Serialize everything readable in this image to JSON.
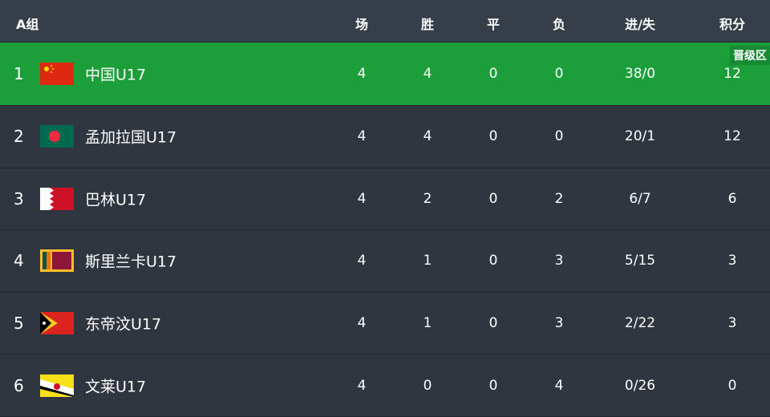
{
  "header": {
    "group": "A组",
    "cols": [
      "场",
      "胜",
      "平",
      "负",
      "进/失",
      "积分"
    ]
  },
  "badge": "晋级区",
  "colors": {
    "promotion": "#1c9e3a",
    "background": "#30363f",
    "header": "#363e4a"
  },
  "rows": [
    {
      "rank": "1",
      "flag": "china",
      "name": "中国U17",
      "p": "4",
      "w": "4",
      "d": "0",
      "l": "0",
      "gf": "38/0",
      "pts": "12"
    },
    {
      "rank": "2",
      "flag": "bangladesh",
      "name": "孟加拉国U17",
      "p": "4",
      "w": "4",
      "d": "0",
      "l": "0",
      "gf": "20/1",
      "pts": "12"
    },
    {
      "rank": "3",
      "flag": "bahrain",
      "name": "巴林U17",
      "p": "4",
      "w": "2",
      "d": "0",
      "l": "2",
      "gf": "6/7",
      "pts": "6"
    },
    {
      "rank": "4",
      "flag": "sri-lanka",
      "name": "斯里兰卡U17",
      "p": "4",
      "w": "1",
      "d": "0",
      "l": "3",
      "gf": "5/15",
      "pts": "3"
    },
    {
      "rank": "5",
      "flag": "timor-leste",
      "name": "东帝汶U17",
      "p": "4",
      "w": "1",
      "d": "0",
      "l": "3",
      "gf": "2/22",
      "pts": "3"
    },
    {
      "rank": "6",
      "flag": "brunei",
      "name": "文莱U17",
      "p": "4",
      "w": "0",
      "d": "0",
      "l": "4",
      "gf": "0/26",
      "pts": "0"
    }
  ]
}
